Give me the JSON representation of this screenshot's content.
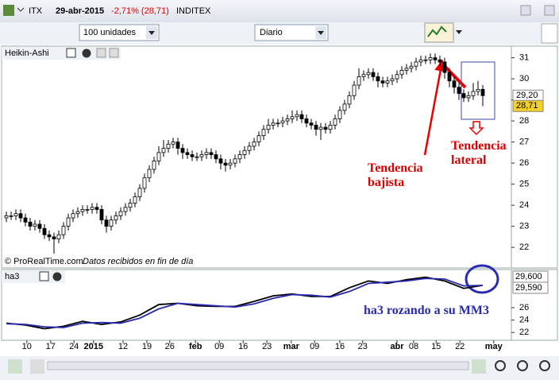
{
  "window": {
    "symbol": "ITX",
    "date": "29-abr-2015",
    "change": "-2,71% (28,71)",
    "name": "INDITEX"
  },
  "toolbar": {
    "quantity": "100 unidades",
    "period": "Diario"
  },
  "chart_data": [
    {
      "type": "candlestick",
      "title": "Heikin-Ashi",
      "credit": "© ProRealTime.com",
      "note": "Datos recibidos en fin de día",
      "open": [
        23.4,
        23.5,
        23.5,
        23.6,
        23.4,
        23.2,
        23.0,
        23.1,
        22.9,
        22.6,
        22.5,
        22.4,
        22.6,
        23.0,
        23.4,
        23.6,
        23.7,
        23.8,
        23.8,
        23.9,
        23.8,
        23.3,
        23.0,
        23.3,
        23.5,
        23.7,
        23.9,
        24.1,
        24.4,
        24.8,
        25.3,
        25.7,
        26.1,
        26.5,
        26.7,
        26.9,
        27.0,
        26.7,
        26.5,
        26.4,
        26.3,
        26.3,
        26.4,
        26.5,
        26.4,
        26.2,
        26.0,
        25.9,
        26.0,
        26.2,
        26.4,
        26.6,
        26.8,
        27.0,
        27.3,
        27.6,
        27.8,
        27.9,
        27.9,
        28.0,
        28.1,
        28.2,
        28.3,
        28.1,
        27.9,
        27.8,
        27.6,
        27.7,
        27.6,
        27.8,
        28.1,
        28.5,
        28.8,
        29.2,
        29.7,
        30.1,
        30.2,
        30.3,
        30.1,
        29.9,
        29.8,
        29.9,
        30.0,
        30.2,
        30.4,
        30.5,
        30.6,
        30.8,
        30.9,
        30.9,
        31.0,
        30.9,
        30.8,
        30.3,
        29.9,
        29.6,
        29.3,
        29.1,
        29.2,
        29.4,
        29.5
      ],
      "high": [
        23.7,
        23.7,
        23.8,
        23.8,
        23.6,
        23.4,
        23.3,
        23.3,
        23.1,
        22.8,
        22.7,
        22.8,
        23.2,
        23.6,
        23.8,
        23.9,
        24.0,
        24.0,
        24.1,
        24.1,
        24.0,
        23.5,
        23.5,
        23.7,
        23.9,
        24.1,
        24.3,
        24.6,
        25.0,
        25.5,
        25.9,
        26.3,
        26.8,
        27.1,
        27.1,
        27.2,
        27.2,
        26.9,
        26.7,
        26.6,
        26.5,
        26.6,
        26.7,
        26.7,
        26.6,
        26.4,
        26.2,
        26.2,
        26.4,
        26.6,
        26.8,
        27.0,
        27.2,
        27.5,
        27.8,
        28.1,
        28.1,
        28.1,
        28.2,
        28.3,
        28.5,
        28.5,
        28.5,
        28.3,
        28.1,
        28.0,
        27.9,
        27.9,
        28.0,
        28.3,
        28.7,
        29.0,
        29.4,
        29.9,
        30.5,
        30.4,
        30.5,
        30.5,
        30.3,
        30.1,
        30.1,
        30.2,
        30.4,
        30.6,
        30.7,
        30.8,
        31.0,
        31.1,
        31.1,
        31.2,
        31.2,
        31.1,
        31.0,
        30.5,
        30.1,
        29.8,
        29.5,
        29.4,
        29.8,
        29.9,
        29.7
      ],
      "low": [
        23.2,
        23.3,
        23.3,
        23.2,
        23.0,
        22.8,
        22.8,
        22.7,
        22.4,
        22.3,
        21.7,
        22.2,
        22.4,
        22.8,
        23.2,
        23.4,
        23.5,
        23.6,
        23.6,
        23.6,
        23.1,
        22.7,
        22.8,
        23.1,
        23.3,
        23.5,
        23.7,
        23.9,
        24.2,
        24.6,
        25.1,
        25.5,
        25.9,
        26.3,
        26.5,
        26.7,
        26.4,
        26.2,
        26.2,
        26.1,
        26.1,
        26.1,
        26.2,
        26.2,
        26.0,
        25.7,
        25.6,
        25.7,
        25.8,
        26.0,
        26.2,
        26.4,
        26.6,
        26.8,
        27.1,
        27.4,
        27.6,
        27.7,
        27.7,
        27.8,
        27.9,
        28.0,
        27.9,
        27.7,
        27.6,
        27.3,
        27.1,
        27.4,
        27.4,
        27.6,
        27.9,
        28.3,
        28.6,
        29.0,
        29.5,
        29.9,
        30.0,
        29.9,
        29.6,
        29.6,
        29.6,
        29.7,
        29.8,
        30.0,
        30.2,
        30.3,
        30.4,
        30.6,
        30.7,
        30.7,
        30.7,
        30.6,
        30.0,
        29.6,
        29.3,
        29.0,
        28.9,
        28.9,
        29.0,
        29.2,
        28.7
      ],
      "close": [
        23.5,
        23.5,
        23.6,
        23.4,
        23.2,
        23.0,
        23.1,
        22.9,
        22.6,
        22.5,
        22.4,
        22.6,
        23.0,
        23.4,
        23.6,
        23.7,
        23.8,
        23.8,
        23.9,
        23.8,
        23.3,
        23.0,
        23.3,
        23.5,
        23.7,
        23.9,
        24.1,
        24.4,
        24.8,
        25.3,
        25.7,
        26.1,
        26.5,
        26.7,
        26.9,
        27.0,
        26.7,
        26.5,
        26.4,
        26.3,
        26.3,
        26.4,
        26.5,
        26.4,
        26.2,
        26.0,
        25.9,
        26.0,
        26.2,
        26.4,
        26.6,
        26.8,
        27.0,
        27.3,
        27.6,
        27.8,
        27.9,
        27.9,
        28.0,
        28.1,
        28.2,
        28.3,
        28.1,
        27.9,
        27.8,
        27.6,
        27.7,
        27.6,
        27.8,
        28.1,
        28.5,
        28.8,
        29.2,
        29.7,
        30.1,
        30.2,
        30.3,
        30.1,
        29.9,
        29.8,
        29.9,
        30.0,
        30.2,
        30.4,
        30.5,
        30.6,
        30.8,
        30.9,
        30.9,
        31.0,
        30.9,
        30.8,
        30.3,
        29.9,
        29.6,
        29.3,
        29.1,
        29.2,
        29.4,
        29.5,
        29.2
      ],
      "color_up": "#ffffff",
      "color_down": "#000000",
      "outline": "#000000",
      "xlim": [
        -1,
        106
      ],
      "ylim": [
        21.1,
        31.4
      ],
      "yticks": [
        22,
        23,
        24,
        25,
        26,
        27,
        28,
        29,
        30,
        31
      ],
      "price_tags": [
        {
          "value": 29.2,
          "label": "29,20",
          "color": "#ffffff"
        },
        {
          "value": 28.71,
          "label": "28,71",
          "color": "#f3cf2a"
        }
      ],
      "annotations": [
        "Tendencia bajista",
        "Tendencia lateral"
      ]
    },
    {
      "type": "line",
      "title": "ha3",
      "x": [
        0,
        4,
        8,
        12,
        16,
        20,
        24,
        28,
        32,
        36,
        40,
        44,
        48,
        52,
        56,
        60,
        64,
        68,
        72,
        76,
        80,
        84,
        88,
        92,
        96,
        100
      ],
      "series": [
        {
          "color": "#000000",
          "values": [
            23.5,
            23.2,
            22.6,
            23.0,
            23.8,
            23.3,
            23.7,
            24.8,
            26.5,
            26.7,
            26.3,
            26.2,
            26.2,
            27.0,
            27.9,
            28.2,
            27.8,
            27.8,
            29.2,
            30.3,
            29.9,
            30.5,
            30.9,
            30.3,
            29.1,
            29.6
          ]
        },
        {
          "color": "#2a2ab0",
          "values": [
            23.4,
            23.3,
            22.9,
            22.8,
            23.5,
            23.6,
            23.5,
            24.3,
            25.8,
            26.7,
            26.5,
            26.3,
            26.1,
            26.6,
            27.5,
            28.1,
            28.0,
            27.7,
            28.6,
            29.9,
            30.1,
            30.3,
            30.7,
            30.6,
            29.5,
            29.59
          ]
        }
      ],
      "xlim": [
        -1,
        106
      ],
      "ylim": [
        21,
        31.5
      ],
      "yticks": [
        22,
        24,
        26
      ],
      "xticks": [
        {
          "value": 4.3,
          "label": "10"
        },
        {
          "value": 9.3,
          "label": "17"
        },
        {
          "value": 14.2,
          "label": "24"
        },
        {
          "value": 18.3,
          "label": "2015"
        },
        {
          "value": 24.5,
          "label": "12"
        },
        {
          "value": 29.5,
          "label": "19"
        },
        {
          "value": 34.3,
          "label": "26"
        },
        {
          "value": 39.7,
          "label": "feb"
        },
        {
          "value": 44.7,
          "label": "09"
        },
        {
          "value": 49.7,
          "label": "16"
        },
        {
          "value": 54.7,
          "label": "23"
        },
        {
          "value": 59.8,
          "label": "mar"
        },
        {
          "value": 64.7,
          "label": "09"
        },
        {
          "value": 70,
          "label": "16"
        },
        {
          "value": 74.8,
          "label": "23"
        },
        {
          "value": 82,
          "label": "abr"
        },
        {
          "value": 85.5,
          "label": "08"
        },
        {
          "value": 90.2,
          "label": "15"
        },
        {
          "value": 95.2,
          "label": "22"
        },
        {
          "value": 102.3,
          "label": "may"
        }
      ],
      "value_tags": [
        {
          "value": 29.6,
          "label": "29,600"
        },
        {
          "value": 29.59,
          "label": "29,590"
        }
      ],
      "annotation": "ha3 rozando a su MM3"
    }
  ]
}
